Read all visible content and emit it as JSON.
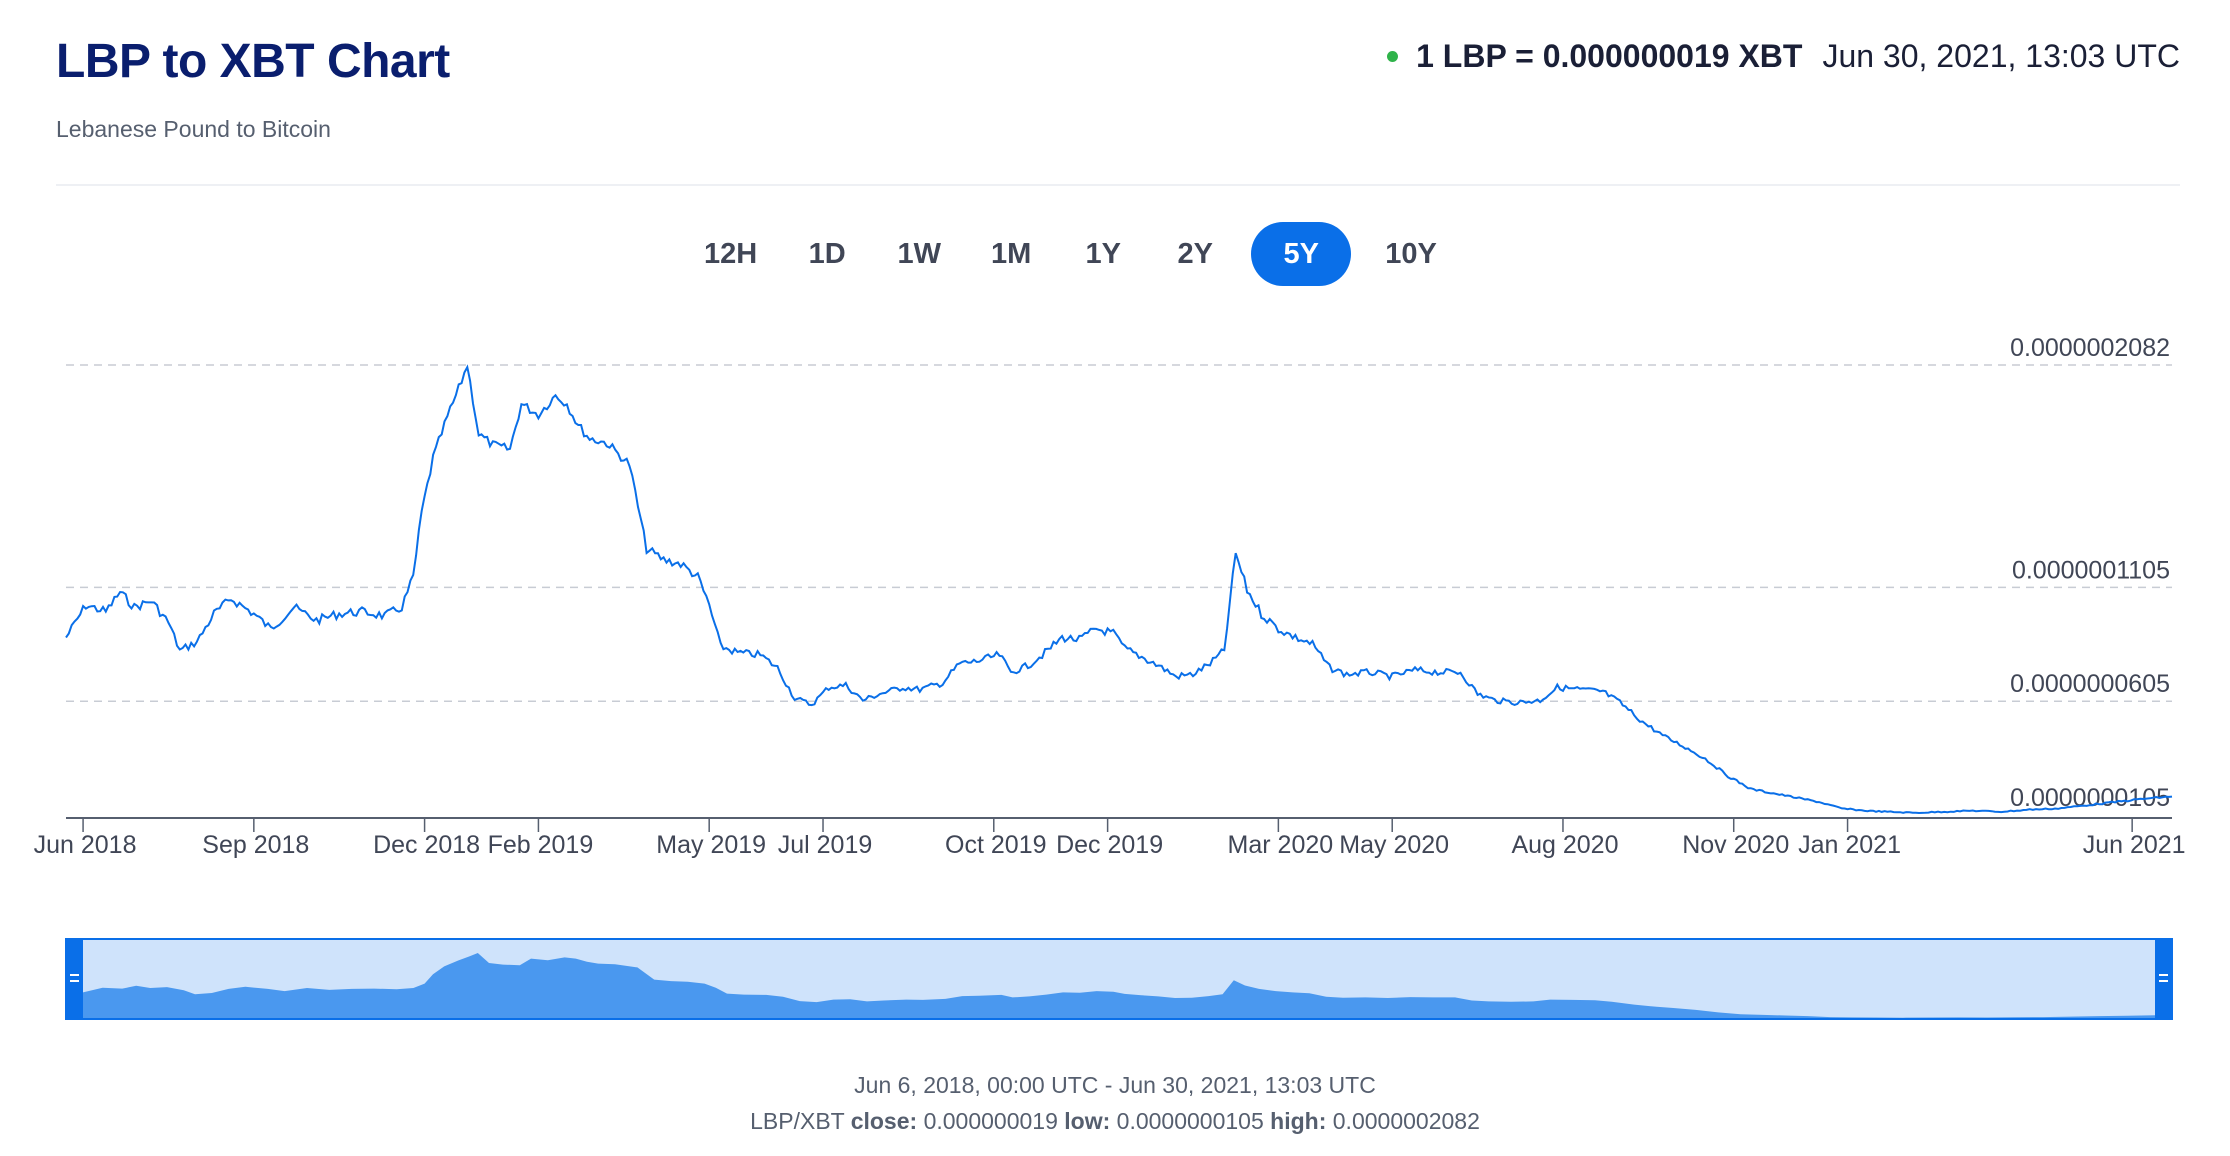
{
  "header": {
    "title": "LBP to XBT Chart",
    "subtitle": "Lebanese Pound to Bitcoin",
    "rate_text": "1 LBP = 0.000000019 XBT",
    "timestamp": "Jun 30, 2021, 13:03 UTC",
    "status_color": "#2fb34a"
  },
  "ranges": [
    {
      "label": "12H",
      "active": false
    },
    {
      "label": "1D",
      "active": false
    },
    {
      "label": "1W",
      "active": false
    },
    {
      "label": "1M",
      "active": false
    },
    {
      "label": "1Y",
      "active": false
    },
    {
      "label": "2Y",
      "active": false
    },
    {
      "label": "5Y",
      "active": true
    },
    {
      "label": "10Y",
      "active": false
    }
  ],
  "chart_data": {
    "type": "line",
    "title": "LBP to XBT Chart",
    "series": [
      {
        "name": "LBP/XBT",
        "color": "#0a6fe8"
      }
    ],
    "y_labels": [
      {
        "value": 2.082e-07,
        "text": "0.0000002082"
      },
      {
        "value": 1.105e-07,
        "text": "0.0000001105"
      },
      {
        "value": 6.05e-08,
        "text": "0.0000000605"
      },
      {
        "value": 1.05e-08,
        "text": "0.0000000105"
      }
    ],
    "ylim": [
      1.05e-08,
      2.082e-07
    ],
    "xlim": [
      0,
      37
    ],
    "x_ticks": [
      {
        "t": 0.3,
        "label": "Jun 2018"
      },
      {
        "t": 3.3,
        "label": "Sep 2018"
      },
      {
        "t": 6.3,
        "label": "Dec 2018"
      },
      {
        "t": 8.3,
        "label": "Feb 2019"
      },
      {
        "t": 11.3,
        "label": "May 2019"
      },
      {
        "t": 13.3,
        "label": "Jul 2019"
      },
      {
        "t": 16.3,
        "label": "Oct 2019"
      },
      {
        "t": 18.3,
        "label": "Dec 2019"
      },
      {
        "t": 21.3,
        "label": "Mar 2020"
      },
      {
        "t": 23.3,
        "label": "May 2020"
      },
      {
        "t": 26.3,
        "label": "Aug 2020"
      },
      {
        "t": 29.3,
        "label": "Nov 2020"
      },
      {
        "t": 31.3,
        "label": "Jan 2021"
      },
      {
        "t": 36.3,
        "label": "Jun 2021"
      }
    ],
    "points": [
      [
        0,
        8.2
      ],
      [
        0.35,
        9.7
      ],
      [
        0.7,
        9.4
      ],
      [
        0.95,
        10.3
      ],
      [
        1.2,
        9.6
      ],
      [
        1.5,
        9.9
      ],
      [
        1.8,
        8.9
      ],
      [
        2.0,
        7.6
      ],
      [
        2.3,
        8.0
      ],
      [
        2.6,
        9.3
      ],
      [
        2.9,
        10.0
      ],
      [
        3.3,
        9.3
      ],
      [
        3.6,
        8.6
      ],
      [
        4.0,
        9.6
      ],
      [
        4.4,
        9.0
      ],
      [
        4.8,
        9.3
      ],
      [
        5.2,
        9.4
      ],
      [
        5.6,
        9.2
      ],
      [
        5.9,
        9.6
      ],
      [
        6.1,
        11.0
      ],
      [
        6.25,
        14.0
      ],
      [
        6.45,
        16.5
      ],
      [
        6.7,
        18.4
      ],
      [
        6.9,
        19.7
      ],
      [
        7.05,
        20.8
      ],
      [
        7.25,
        17.6
      ],
      [
        7.5,
        17.1
      ],
      [
        7.8,
        16.9
      ],
      [
        8.0,
        19.0
      ],
      [
        8.3,
        18.5
      ],
      [
        8.6,
        19.4
      ],
      [
        8.8,
        19.0
      ],
      [
        9.0,
        18.0
      ],
      [
        9.2,
        17.4
      ],
      [
        9.5,
        17.2
      ],
      [
        9.9,
        16.2
      ],
      [
        10.2,
        12.3
      ],
      [
        10.5,
        11.8
      ],
      [
        10.8,
        11.6
      ],
      [
        11.1,
        11.0
      ],
      [
        11.3,
        9.7
      ],
      [
        11.5,
        7.8
      ],
      [
        11.8,
        7.5
      ],
      [
        12.2,
        7.4
      ],
      [
        12.5,
        6.8
      ],
      [
        12.8,
        5.4
      ],
      [
        13.1,
        5.1
      ],
      [
        13.4,
        5.9
      ],
      [
        13.7,
        6.0
      ],
      [
        14.0,
        5.3
      ],
      [
        14.3,
        5.6
      ],
      [
        14.7,
        5.9
      ],
      [
        15.0,
        5.8
      ],
      [
        15.4,
        6.1
      ],
      [
        15.7,
        7.0
      ],
      [
        16.0,
        7.1
      ],
      [
        16.4,
        7.4
      ],
      [
        16.6,
        6.6
      ],
      [
        16.9,
        6.9
      ],
      [
        17.2,
        7.5
      ],
      [
        17.5,
        8.2
      ],
      [
        17.8,
        8.1
      ],
      [
        18.1,
        8.6
      ],
      [
        18.4,
        8.4
      ],
      [
        18.6,
        7.7
      ],
      [
        18.9,
        7.3
      ],
      [
        19.2,
        6.9
      ],
      [
        19.5,
        6.4
      ],
      [
        19.8,
        6.5
      ],
      [
        20.1,
        7.0
      ],
      [
        20.35,
        7.6
      ],
      [
        20.55,
        12.1
      ],
      [
        20.75,
        10.4
      ],
      [
        21.0,
        9.3
      ],
      [
        21.3,
        8.6
      ],
      [
        21.6,
        8.2
      ],
      [
        21.9,
        7.9
      ],
      [
        22.2,
        6.8
      ],
      [
        22.5,
        6.5
      ],
      [
        22.9,
        6.6
      ],
      [
        23.3,
        6.4
      ],
      [
        23.7,
        6.7
      ],
      [
        24.1,
        6.6
      ],
      [
        24.5,
        6.6
      ],
      [
        24.8,
        5.6
      ],
      [
        25.1,
        5.3
      ],
      [
        25.5,
        5.2
      ],
      [
        25.9,
        5.3
      ],
      [
        26.2,
        5.9
      ],
      [
        26.6,
        5.8
      ],
      [
        27.0,
        5.7
      ],
      [
        27.3,
        5.2
      ],
      [
        27.7,
        4.3
      ],
      [
        28.1,
        3.6
      ],
      [
        28.4,
        3.2
      ],
      [
        28.8,
        2.6
      ],
      [
        29.2,
        1.8
      ],
      [
        29.6,
        1.2
      ],
      [
        30.0,
        1.0
      ],
      [
        30.4,
        0.8
      ],
      [
        30.8,
        0.6
      ],
      [
        31.2,
        0.3
      ],
      [
        31.6,
        0.2
      ],
      [
        32.0,
        0.15
      ],
      [
        32.5,
        0.1
      ],
      [
        33.0,
        0.15
      ],
      [
        33.5,
        0.2
      ],
      [
        34.0,
        0.15
      ],
      [
        34.5,
        0.25
      ],
      [
        35.0,
        0.3
      ],
      [
        35.5,
        0.45
      ],
      [
        36.0,
        0.6
      ],
      [
        36.5,
        0.75
      ],
      [
        37.0,
        0.85
      ]
    ]
  },
  "footer": {
    "range_text": "Jun 6, 2018, 00:00 UTC - Jun 30, 2021, 13:03 UTC",
    "pair": "LBP/XBT",
    "close_label": "close:",
    "close_value": "0.000000019",
    "low_label": "low:",
    "low_value": "0.0000000105",
    "high_label": "high:",
    "high_value": "0.0000002082"
  }
}
